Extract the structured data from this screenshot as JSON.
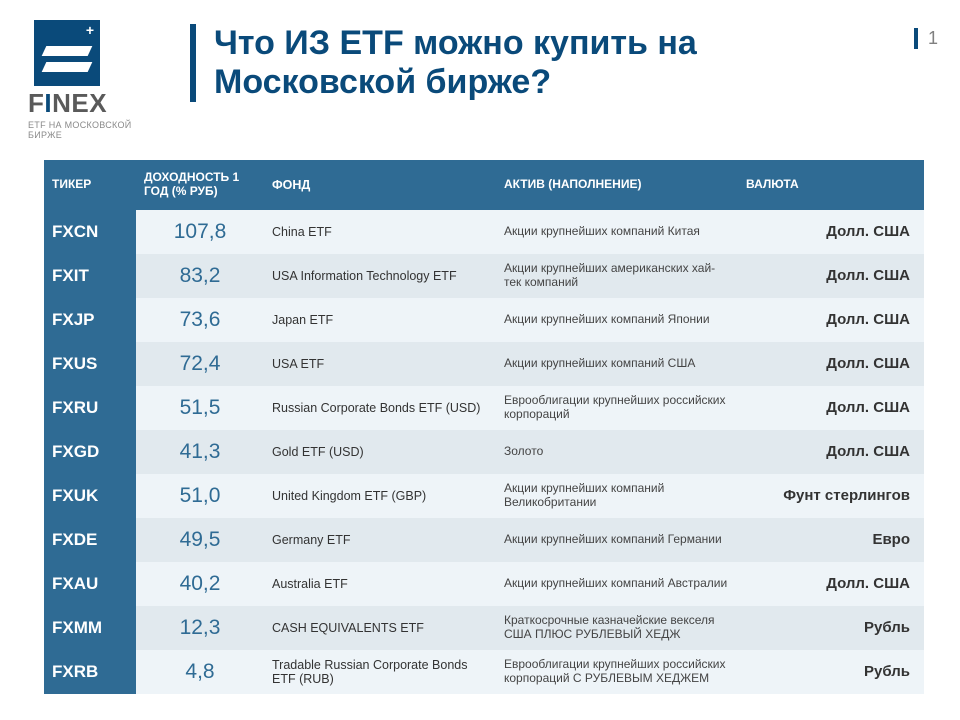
{
  "logo": {
    "brand": "FINEX",
    "subtitle": "ETF НА МОСКОВСКОЙ\nБИРЖЕ"
  },
  "page_number": "1",
  "title": "Что ИЗ ETF можно купить на Московской бирже?",
  "columns": {
    "ticker": "ТИКЕР",
    "return": "ДОХОДНОСТЬ 1 ГОД (% РУБ)",
    "fund": "ФОНД",
    "asset": "АКТИВ (НАПОЛНЕНИЕ)",
    "currency": "ВАЛЮТА"
  },
  "rows": [
    {
      "ticker": "FXCN",
      "return": "107,8",
      "fund": "China ETF",
      "asset": "Акции крупнейших компаний Китая",
      "currency": "Долл. США"
    },
    {
      "ticker": "FXIT",
      "return": "83,2",
      "fund": "USA Information Technology ETF",
      "asset": "Акции крупнейших американских хай-тек компаний",
      "currency": "Долл. США"
    },
    {
      "ticker": "FXJP",
      "return": "73,6",
      "fund": "Japan ETF",
      "asset": "Акции крупнейших компаний Японии",
      "currency": "Долл. США"
    },
    {
      "ticker": "FXUS",
      "return": "72,4",
      "fund": "USA ETF",
      "asset": "Акции крупнейших компаний США",
      "currency": "Долл. США"
    },
    {
      "ticker": "FXRU",
      "return": "51,5",
      "fund": "Russian Corporate Bonds ETF (USD)",
      "asset": "Еврооблигации крупнейших российских корпораций",
      "currency": "Долл. США"
    },
    {
      "ticker": "FXGD",
      "return": "41,3",
      "fund": "Gold ETF (USD)",
      "asset": "Золото",
      "currency": "Долл. США"
    },
    {
      "ticker": "FXUK",
      "return": "51,0",
      "fund": "United Kingdom ETF (GBP)",
      "asset": "Акции крупнейших компаний Великобритании",
      "currency": "Фунт стерлингов"
    },
    {
      "ticker": "FXDE",
      "return": "49,5",
      "fund": "Germany ETF",
      "asset": "Акции крупнейших компаний Германии",
      "currency": "Евро"
    },
    {
      "ticker": "FXAU",
      "return": "40,2",
      "fund": "Australia ETF",
      "asset": "Акции крупнейших компаний Австралии",
      "currency": "Долл. США"
    },
    {
      "ticker": "FXMM",
      "return": "12,3",
      "fund": "CASH EQUIVALENTS ETF",
      "asset": "Краткосрочные казначейские векселя США ПЛЮС РУБЛЕВЫЙ ХЕДЖ",
      "currency": "Рубль"
    },
    {
      "ticker": "FXRB",
      "return": "4,8",
      "fund": "Tradable Russian Corporate Bonds ETF (RUB)",
      "asset": "Еврооблигации крупнейших российских корпораций С РУБЛЕВЫМ ХЕДЖЕМ",
      "currency": "Рубль"
    }
  ],
  "colors": {
    "brand_blue": "#0a4a7a",
    "header_blue": "#2f6b94",
    "row_light": "#eef4f8",
    "row_dark": "#e1e9ee"
  }
}
